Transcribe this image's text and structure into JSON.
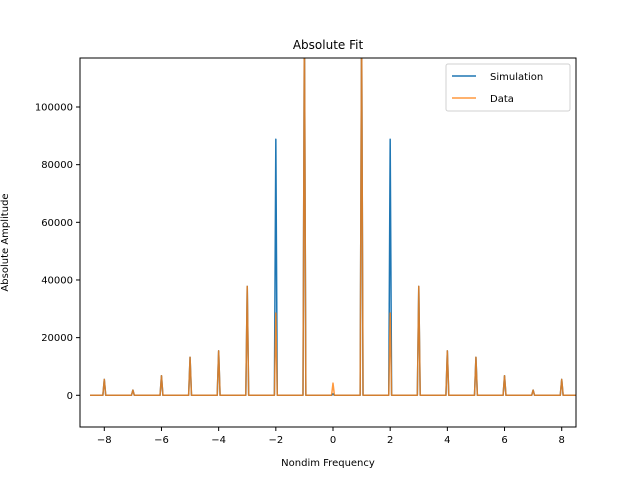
{
  "chart_data": {
    "type": "line",
    "title": "Absolute Fit",
    "xlabel": "Nondim Frequency",
    "ylabel": "Absolute Amplitude",
    "xlim": [
      -8.85,
      8.5
    ],
    "ylim": [
      -11000,
      117000
    ],
    "xticks": [
      -8,
      -6,
      -4,
      -2,
      0,
      2,
      4,
      6,
      8
    ],
    "xtick_labels": [
      "−8",
      "−6",
      "−4",
      "−2",
      "0",
      "2",
      "4",
      "6",
      "8"
    ],
    "yticks": [
      0,
      20000,
      40000,
      60000,
      80000,
      100000
    ],
    "ytick_labels": [
      "0",
      "20000",
      "40000",
      "60000",
      "80000",
      "100000"
    ],
    "grid": false,
    "legend": {
      "placement": "top-right",
      "entries": [
        "Simulation",
        "Data"
      ]
    },
    "series": [
      {
        "name": "Simulation",
        "color": "#1f77b4",
        "x_range": [
          -8.5,
          8.5
        ],
        "peaks": [
          {
            "x": -8,
            "y": 5500
          },
          {
            "x": -7,
            "y": 1800
          },
          {
            "x": -6,
            "y": 6800
          },
          {
            "x": -5,
            "y": 13200
          },
          {
            "x": -4,
            "y": 15400
          },
          {
            "x": -3,
            "y": 37800
          },
          {
            "x": -2,
            "y": 88800
          },
          {
            "x": -1,
            "y": 130000
          },
          {
            "x": 0,
            "y": 500
          },
          {
            "x": 1,
            "y": 130000
          },
          {
            "x": 2,
            "y": 88800
          },
          {
            "x": 3,
            "y": 37800
          },
          {
            "x": 4,
            "y": 15400
          },
          {
            "x": 5,
            "y": 13200
          },
          {
            "x": 6,
            "y": 6800
          },
          {
            "x": 7,
            "y": 1800
          },
          {
            "x": 8,
            "y": 5500
          }
        ]
      },
      {
        "name": "Data",
        "color": "#ff7f0e",
        "x_range": [
          -8.5,
          8.5
        ],
        "peaks": [
          {
            "x": -8,
            "y": 5500
          },
          {
            "x": -7,
            "y": 1800
          },
          {
            "x": -6,
            "y": 6800
          },
          {
            "x": -5,
            "y": 13200
          },
          {
            "x": -4,
            "y": 15400
          },
          {
            "x": -3,
            "y": 37800
          },
          {
            "x": -2,
            "y": 28500
          },
          {
            "x": -1,
            "y": 130000
          },
          {
            "x": 0,
            "y": 4200
          },
          {
            "x": 1,
            "y": 130000
          },
          {
            "x": 2,
            "y": 28500
          },
          {
            "x": 3,
            "y": 37800
          },
          {
            "x": 4,
            "y": 15400
          },
          {
            "x": 5,
            "y": 13200
          },
          {
            "x": 6,
            "y": 6800
          },
          {
            "x": 7,
            "y": 1800
          },
          {
            "x": 8,
            "y": 5500
          }
        ]
      }
    ]
  }
}
